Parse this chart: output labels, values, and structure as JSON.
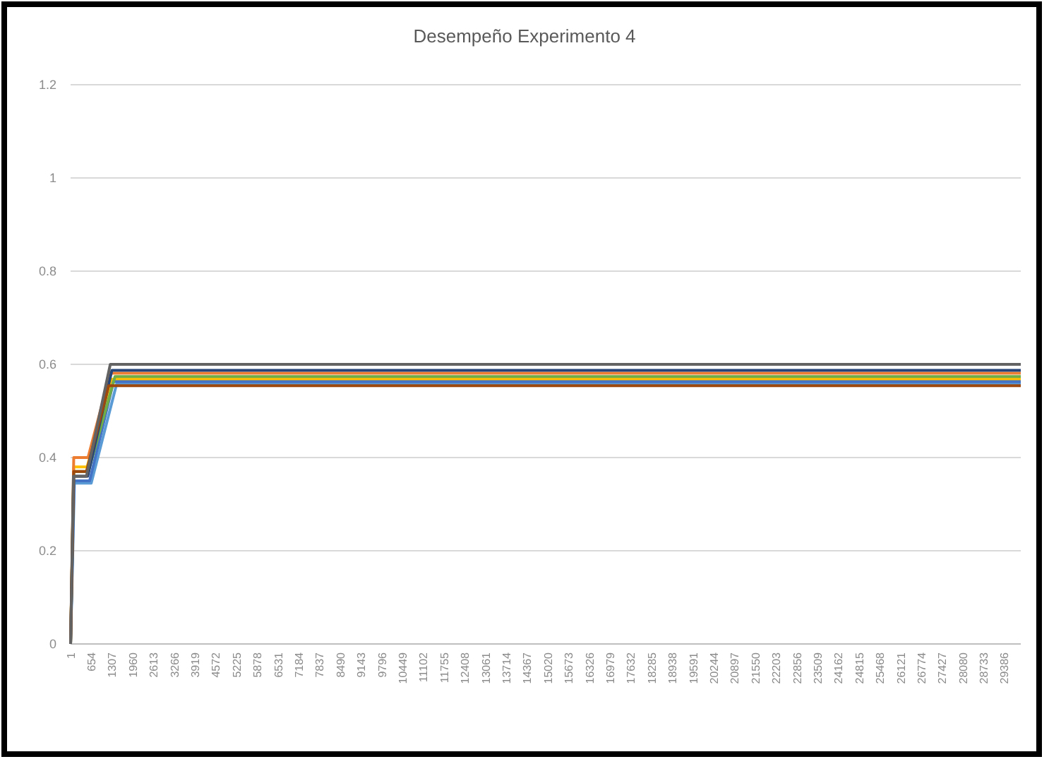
{
  "chart_data": {
    "type": "line",
    "title": "Desempeño Experimento 4",
    "xlim": [
      1,
      29900
    ],
    "xticks": [
      1,
      654,
      1307,
      1960,
      2613,
      3266,
      3919,
      4572,
      5225,
      5878,
      6531,
      7184,
      7837,
      8490,
      9143,
      9796,
      10449,
      11102,
      11755,
      12408,
      13061,
      13714,
      14367,
      15020,
      15673,
      16326,
      16979,
      17632,
      18285,
      18938,
      19591,
      20244,
      20897,
      21550,
      22203,
      22856,
      23509,
      24162,
      24815,
      25468,
      26121,
      26774,
      27427,
      28080,
      28733,
      29386
    ],
    "ylim": [
      0,
      1.2
    ],
    "yticks": [
      0,
      0.2,
      0.4,
      0.6,
      0.8,
      1,
      1.2
    ],
    "grid": "y",
    "marker": "none",
    "line_style": "solid",
    "series": [
      {
        "color": "#ffc000",
        "x": [
          1,
          100,
          520,
          1300,
          29900
        ],
        "values": [
          0,
          0.38,
          0.38,
          0.568,
          0.568
        ]
      },
      {
        "color": "#5b9bd5",
        "x": [
          1,
          120,
          650,
          1450,
          29900
        ],
        "values": [
          0,
          0.345,
          0.345,
          0.558,
          0.558
        ]
      },
      {
        "color": "#4472c4",
        "x": [
          1,
          110,
          600,
          1350,
          29900
        ],
        "values": [
          0,
          0.35,
          0.35,
          0.563,
          0.563
        ]
      },
      {
        "color": "#70ad47",
        "x": [
          1,
          100,
          560,
          1400,
          29900
        ],
        "values": [
          0,
          0.37,
          0.37,
          0.574,
          0.574
        ]
      },
      {
        "color": "#ed7d31",
        "x": [
          1,
          100,
          550,
          1250,
          29900
        ],
        "values": [
          0,
          0.4,
          0.4,
          0.581,
          0.581
        ]
      },
      {
        "color": "#264478",
        "x": [
          1,
          100,
          540,
          1300,
          29900
        ],
        "values": [
          0,
          0.36,
          0.36,
          0.587,
          0.587
        ]
      },
      {
        "color": "#9e480e",
        "x": [
          1,
          100,
          500,
          1200,
          29900
        ],
        "values": [
          0,
          0.37,
          0.37,
          0.554,
          0.554
        ]
      },
      {
        "color": "#636363",
        "x": [
          1,
          90,
          500,
          1250,
          29900
        ],
        "values": [
          0,
          0.36,
          0.36,
          0.6,
          0.6
        ]
      }
    ]
  }
}
